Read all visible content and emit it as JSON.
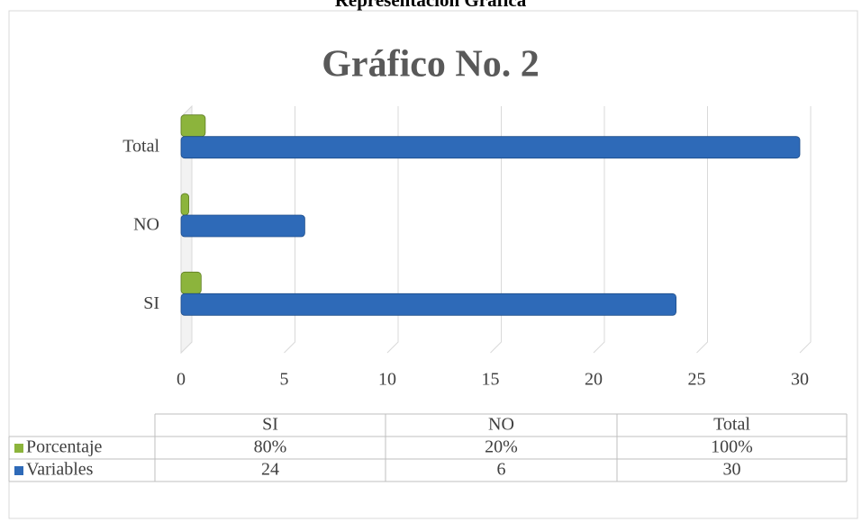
{
  "header": "Representación Gráfica",
  "chart_data": {
    "type": "bar",
    "orientation": "horizontal",
    "title": "Gráfico No. 2",
    "categories": [
      "SI",
      "NO",
      "Total"
    ],
    "series": [
      {
        "name": "Porcentaje",
        "color": "#8cb43c",
        "values": [
          0.8,
          0.2,
          1
        ],
        "value_labels": [
          "80%",
          "20%",
          "100%"
        ]
      },
      {
        "name": "Variables",
        "color": "#2e6ab8",
        "values": [
          24,
          6,
          30
        ]
      }
    ],
    "xlim": [
      0,
      30
    ],
    "xticks": [
      0,
      5,
      10,
      15,
      20,
      25,
      30
    ],
    "grid": true,
    "legend": "table"
  }
}
